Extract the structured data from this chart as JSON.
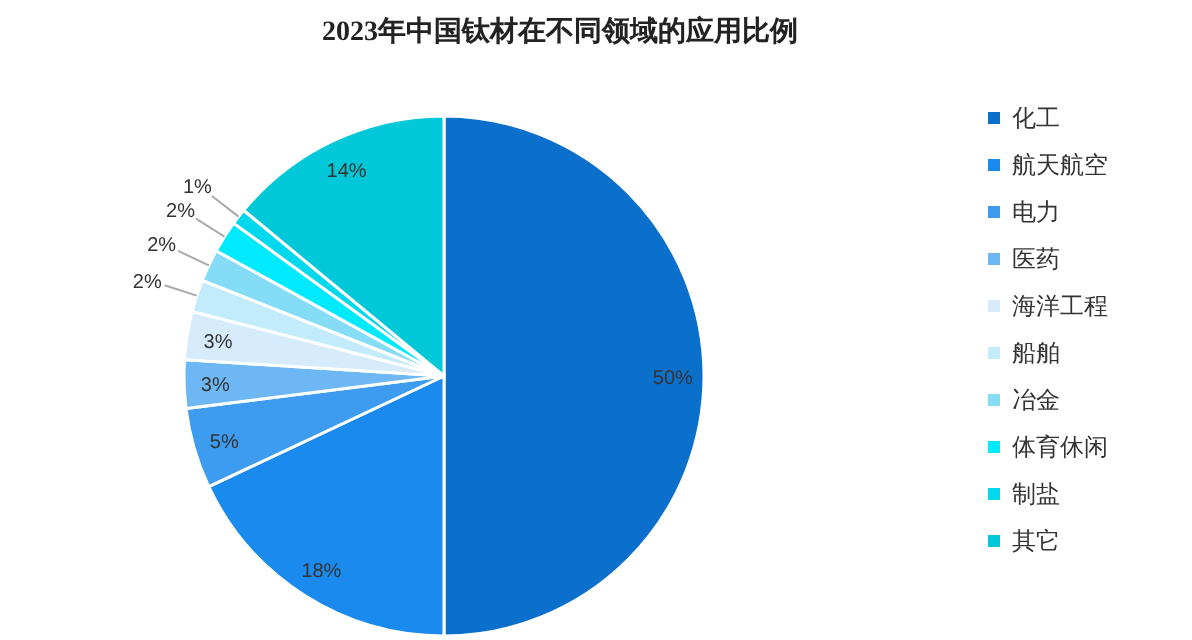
{
  "chart_data": {
    "type": "pie",
    "title": "2023年中国钛材在不同领域的应用比例",
    "categories": [
      "化工",
      "航天航空",
      "电力",
      "医药",
      "海洋工程",
      "船舶",
      "冶金",
      "体育休闲",
      "制盐",
      "其它"
    ],
    "values": [
      50,
      18,
      5,
      3,
      3,
      2,
      2,
      2,
      1,
      14
    ],
    "value_labels": [
      "50%",
      "18%",
      "5%",
      "3%",
      "3%",
      "2%",
      "2%",
      "2%",
      "1%",
      "14%"
    ],
    "colors": [
      "#0b6fcc",
      "#1a8aef",
      "#3d9cf0",
      "#6db7f5",
      "#d6ecfc",
      "#c2ebfc",
      "#85dcf7",
      "#00eaff",
      "#00d8ee",
      "#00c8d8"
    ],
    "legend": "right"
  }
}
